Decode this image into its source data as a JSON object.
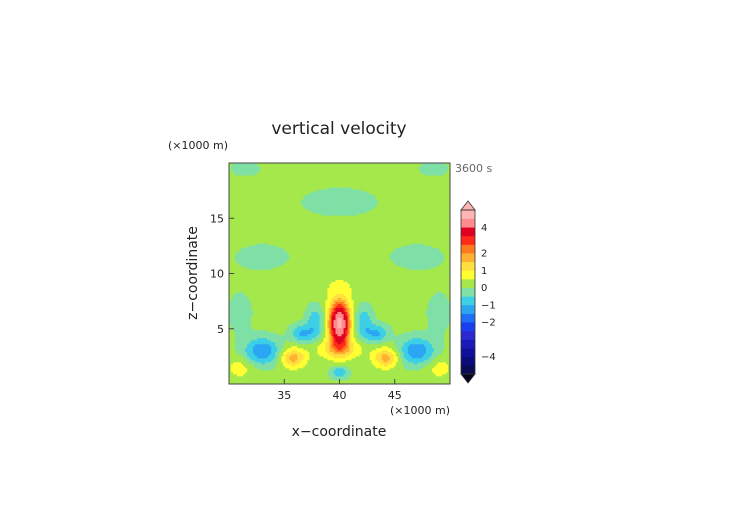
{
  "chart_data": {
    "type": "heatmap",
    "title": "vertical velocity",
    "time_label": "3600 s",
    "xlabel": "x−coordinate",
    "ylabel": "z−coordinate",
    "x_unit": "(×1000 m)",
    "y_unit": "(×1000 m)",
    "xlim": [
      30,
      50
    ],
    "ylim": [
      0,
      20
    ],
    "x_ticks": [
      35,
      40,
      45
    ],
    "x_tick_labels": [
      "35",
      "40",
      "45"
    ],
    "y_ticks": [
      5,
      10,
      15
    ],
    "y_tick_labels": [
      "5",
      "10",
      "15"
    ],
    "colorbar": {
      "levels": [
        -5,
        -4.5,
        -4,
        -3.5,
        -3,
        -2.5,
        -2,
        -1.5,
        -1,
        -0.5,
        0,
        0.5,
        1,
        1.5,
        2,
        2.5,
        3,
        4,
        5
      ],
      "colors": [
        "#0a0a55",
        "#0b0b7a",
        "#10109a",
        "#1a1ab8",
        "#2a2ad0",
        "#1a3ff0",
        "#1f6ff7",
        "#2aa6f2",
        "#3ccfe6",
        "#7fe0a6",
        "#a4e84c",
        "#ffff33",
        "#ffe040",
        "#ffb030",
        "#ff7a1e",
        "#ff2a1a",
        "#e00020",
        "#ff8c8c",
        "#ffb4b4"
      ],
      "tick_values": [
        -4,
        -2,
        -1,
        0,
        1,
        2,
        4
      ],
      "tick_labels": [
        "−4",
        "−2",
        "−1",
        "0",
        "1",
        "2",
        "4"
      ],
      "extend": "both"
    },
    "field_features": [
      {
        "kind": "updraft",
        "x": 40.0,
        "z": 5.5,
        "peak": 5.0
      },
      {
        "kind": "downdraft",
        "x": 33.0,
        "z": 3.0,
        "peak": -1.5
      },
      {
        "kind": "downdraft",
        "x": 47.0,
        "z": 3.0,
        "peak": -1.5
      },
      {
        "kind": "downdraft",
        "x": 37.8,
        "z": 5.5,
        "peak": -1.0
      },
      {
        "kind": "downdraft",
        "x": 42.2,
        "z": 5.5,
        "peak": -1.0
      },
      {
        "kind": "downdraft",
        "x": 40.0,
        "z": 1.2,
        "peak": -1.0
      },
      {
        "kind": "updraft",
        "x": 35.5,
        "z": 2.5,
        "peak": 2.0
      },
      {
        "kind": "updraft",
        "x": 44.5,
        "z": 2.5,
        "peak": 2.0
      },
      {
        "kind": "weak-downdraft",
        "x": 40.0,
        "z": 16.5,
        "peak": -0.2
      }
    ]
  }
}
